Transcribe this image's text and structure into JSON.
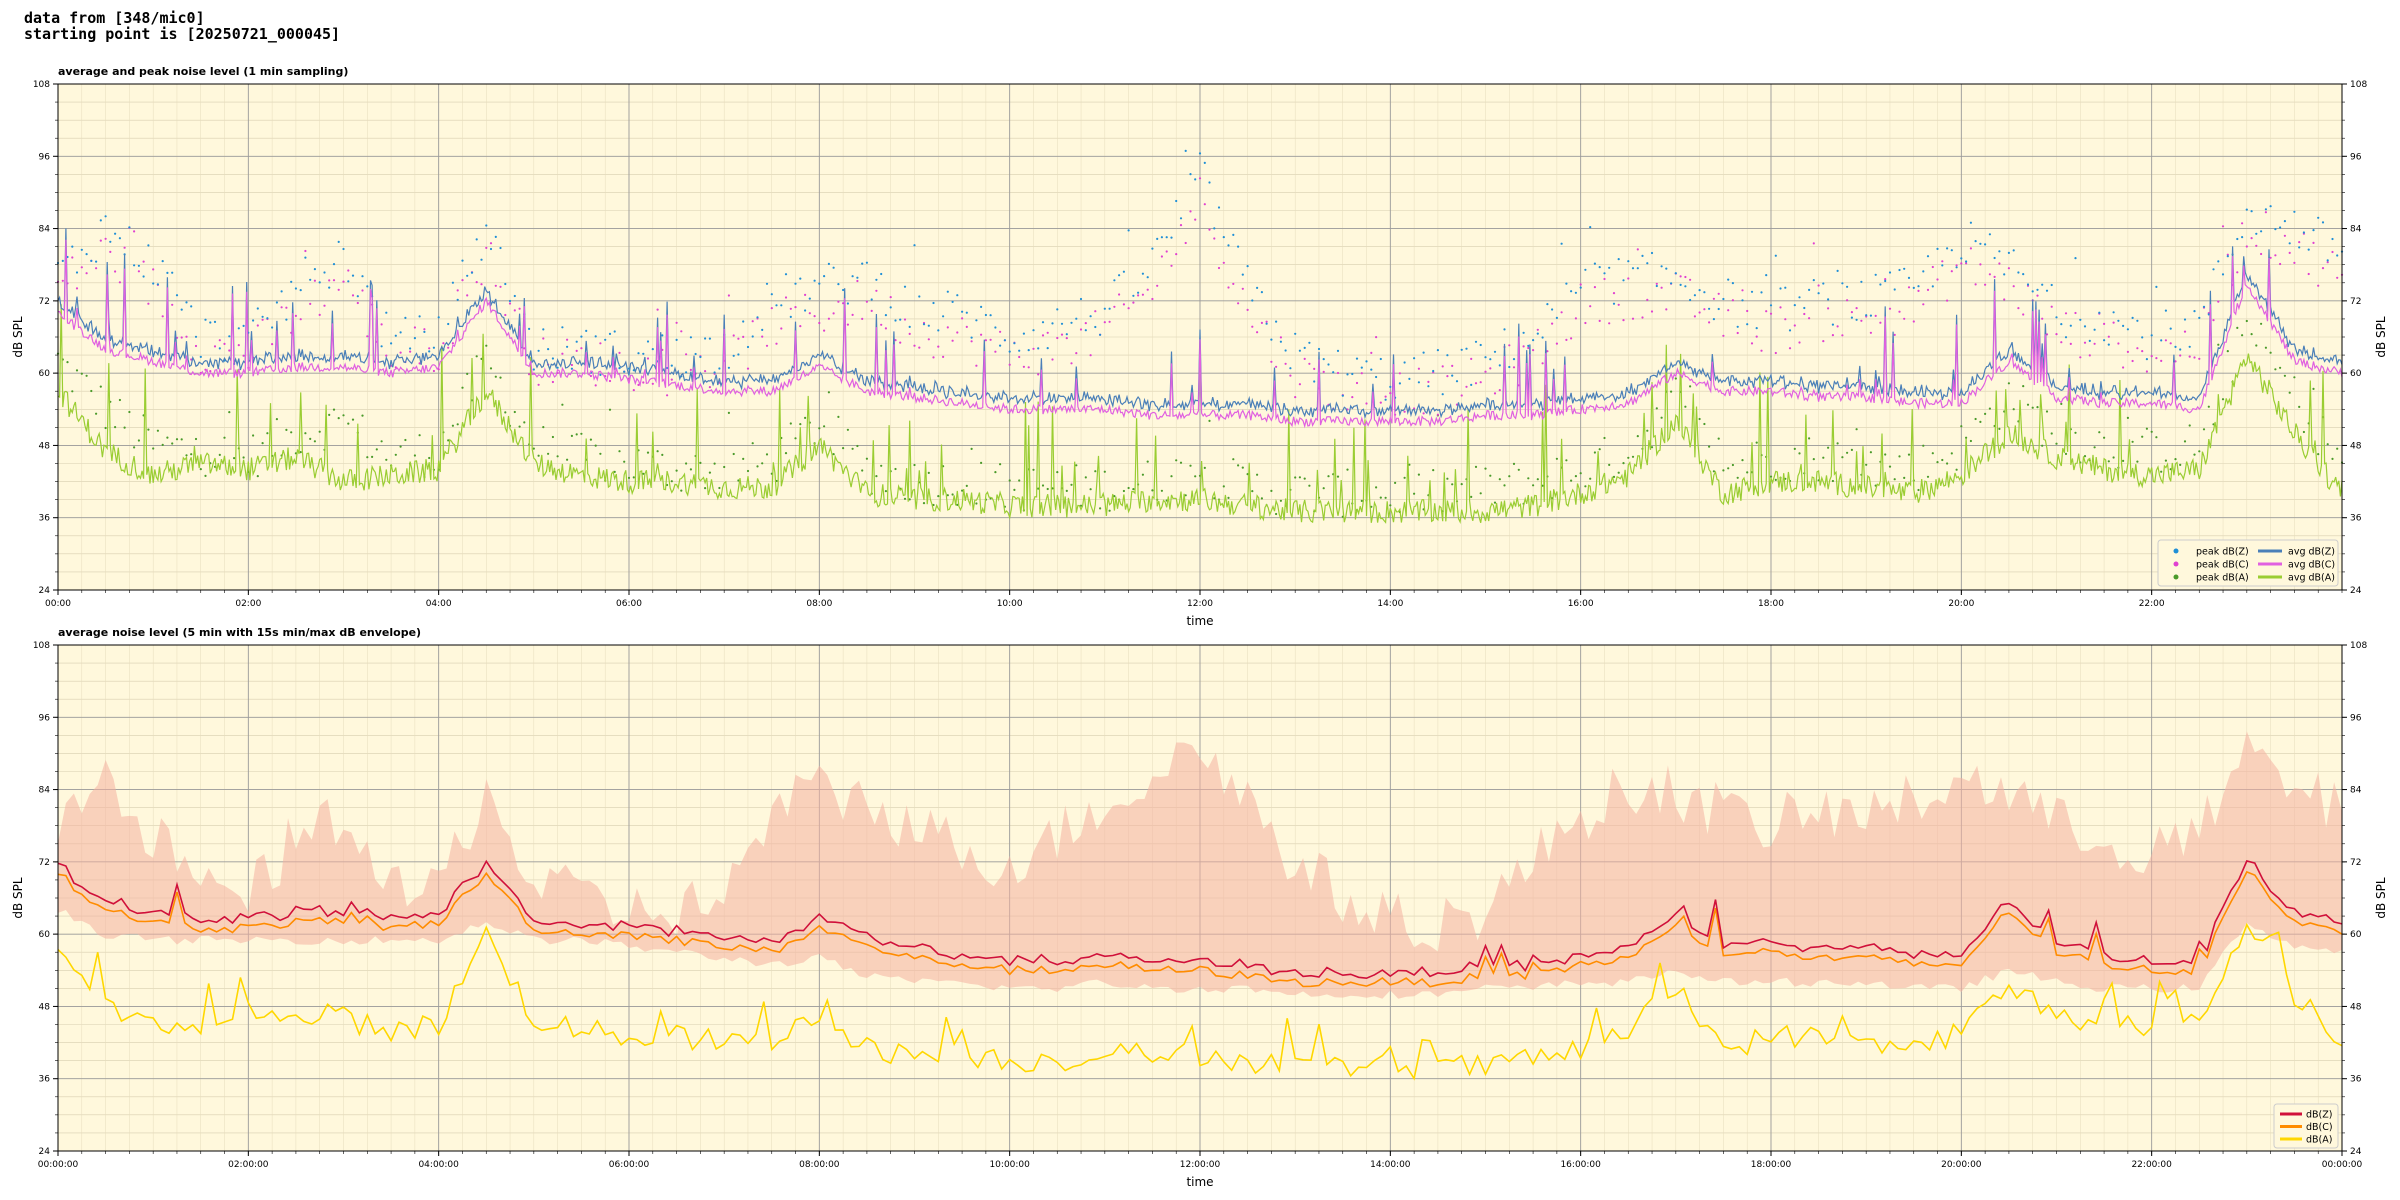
{
  "header": {
    "line1": "data from [348/mic0]",
    "line2": "starting point is [20250721_000045]"
  },
  "colors": {
    "plot_bg": "#fff8dc",
    "peak_z": "#1f8fd6",
    "peak_c": "#e040d0",
    "peak_a": "#4a9a2a",
    "avg_z": "#4a7fb8",
    "avg_c": "#e060e0",
    "avg_a": "#9acd32",
    "env_fill": "#f4b0a0",
    "dbz5": "#d0103a",
    "dbc5": "#ff8c00",
    "dba5": "#ffd700"
  },
  "chart_data": [
    {
      "type": "line",
      "title": "average and peak noise level (1 min sampling)",
      "xlabel": "time",
      "ylabel": "dB SPL",
      "ylim": [
        24,
        108
      ],
      "yticks": [
        "24",
        "36",
        "48",
        "60",
        "72",
        "84",
        "96",
        "108"
      ],
      "xlim_hours": [
        0,
        24
      ],
      "xtick_labels": [
        "00:00",
        "02:00",
        "04:00",
        "06:00",
        "08:00",
        "10:00",
        "12:00",
        "14:00",
        "16:00",
        "18:00",
        "20:00",
        "22:00"
      ],
      "grid": true,
      "legend_position": "lower-right",
      "legend": [
        "peak dB(Z)",
        "peak dB(C)",
        "peak dB(A)",
        "avg dB(Z)",
        "avg dB(C)",
        "avg dB(A)"
      ],
      "x_hours": [
        0,
        0.5,
        1,
        1.5,
        2,
        2.5,
        3,
        3.5,
        4,
        4.5,
        5,
        5.5,
        6,
        6.5,
        7,
        7.5,
        8,
        8.5,
        9,
        9.5,
        10,
        10.5,
        11,
        11.5,
        12,
        12.5,
        13,
        13.5,
        14,
        14.5,
        15,
        15.5,
        16,
        16.5,
        17,
        17.5,
        18,
        18.5,
        19,
        19.5,
        20,
        20.5,
        21,
        21.5,
        22,
        22.5,
        23,
        23.5,
        24
      ],
      "series": [
        {
          "name": "avg dB(Z)",
          "values": [
            72,
            67,
            64,
            62,
            62,
            63,
            63,
            62,
            63,
            74,
            62,
            61,
            61,
            60,
            59,
            59,
            62,
            60,
            59,
            58,
            57,
            57,
            57,
            56,
            56,
            56,
            55,
            55,
            55,
            55,
            56,
            56,
            57,
            58,
            62,
            60,
            60,
            59,
            59,
            58,
            58,
            64,
            59,
            58,
            58,
            57,
            76,
            64,
            62
          ]
        },
        {
          "name": "avg dB(C)",
          "values": [
            70,
            64,
            62,
            60,
            60,
            61,
            61,
            60,
            61,
            72,
            60,
            60,
            59,
            58,
            57,
            57,
            61,
            57,
            56,
            55,
            54,
            54,
            54,
            53,
            53,
            53,
            52,
            52,
            52,
            52,
            53,
            53,
            54,
            55,
            60,
            57,
            57,
            56,
            56,
            55,
            55,
            62,
            56,
            55,
            55,
            54,
            75,
            62,
            60
          ]
        },
        {
          "name": "avg dB(A)",
          "values": [
            57,
            47,
            43,
            45,
            44,
            46,
            42,
            43,
            44,
            57,
            45,
            43,
            42,
            42,
            41,
            41,
            48,
            40,
            39,
            39,
            38,
            38,
            38,
            39,
            39,
            38,
            37,
            37,
            37,
            37,
            37,
            38,
            40,
            43,
            52,
            40,
            42,
            42,
            41,
            40,
            43,
            50,
            46,
            44,
            43,
            44,
            63,
            50,
            40
          ]
        },
        {
          "name": "peak dB(Z)",
          "values": [
            76,
            84,
            78,
            66,
            65,
            74,
            80,
            65,
            66,
            84,
            64,
            64,
            63,
            63,
            64,
            72,
            74,
            76,
            70,
            70,
            66,
            68,
            70,
            78,
            93,
            74,
            63,
            60,
            59,
            60,
            62,
            66,
            74,
            76,
            76,
            72,
            70,
            72,
            72,
            74,
            82,
            78,
            70,
            69,
            66,
            68,
            87,
            84,
            80
          ]
        },
        {
          "name": "peak dB(C)",
          "values": [
            74,
            80,
            74,
            64,
            63,
            70,
            76,
            63,
            64,
            80,
            62,
            62,
            61,
            60,
            61,
            68,
            70,
            72,
            67,
            66,
            63,
            64,
            67,
            74,
            89,
            70,
            60,
            57,
            57,
            57,
            59,
            63,
            71,
            73,
            73,
            69,
            67,
            69,
            69,
            71,
            78,
            75,
            67,
            66,
            63,
            65,
            84,
            81,
            76
          ]
        },
        {
          "name": "peak dB(A)",
          "values": [
            62,
            54,
            48,
            47,
            46,
            50,
            52,
            46,
            47,
            62,
            48,
            46,
            45,
            44,
            44,
            45,
            52,
            44,
            42,
            42,
            41,
            41,
            41,
            42,
            44,
            41,
            40,
            40,
            40,
            40,
            41,
            42,
            44,
            47,
            56,
            44,
            46,
            46,
            45,
            44,
            48,
            56,
            50,
            48,
            47,
            48,
            68,
            56,
            45
          ]
        }
      ]
    },
    {
      "type": "line",
      "title": "average noise level (5 min with 15s min/max dB envelope)",
      "xlabel": "time",
      "ylabel": "dB SPL",
      "ylim": [
        24,
        108
      ],
      "yticks": [
        "24",
        "36",
        "48",
        "60",
        "72",
        "84",
        "96",
        "108"
      ],
      "xlim_hours": [
        0,
        24
      ],
      "xtick_labels": [
        "00:00:00",
        "02:00:00",
        "04:00:00",
        "06:00:00",
        "08:00:00",
        "10:00:00",
        "12:00:00",
        "14:00:00",
        "16:00:00",
        "18:00:00",
        "20:00:00",
        "22:00:00",
        "00:00:00"
      ],
      "grid": true,
      "legend_position": "lower-right",
      "legend": [
        "dB(Z)",
        "dB(C)",
        "dB(A)"
      ],
      "x_hours": [
        0,
        0.5,
        1,
        1.5,
        2,
        2.5,
        3,
        3.5,
        4,
        4.5,
        5,
        5.5,
        6,
        6.5,
        7,
        7.5,
        8,
        8.5,
        9,
        9.5,
        10,
        10.5,
        11,
        11.5,
        12,
        12.5,
        13,
        13.5,
        14,
        14.5,
        15,
        15.5,
        16,
        16.5,
        17,
        17.5,
        18,
        18.5,
        19,
        19.5,
        20,
        20.5,
        21,
        21.5,
        22,
        22.5,
        23,
        23.5,
        24
      ],
      "series": [
        {
          "name": "dB(Z)",
          "values": [
            72,
            66,
            64,
            62,
            62,
            63,
            64,
            62,
            63,
            72,
            62,
            61,
            61,
            60,
            59,
            59,
            63,
            60,
            59,
            58,
            57,
            57,
            58,
            57,
            56,
            56,
            55,
            55,
            55,
            55,
            56,
            56,
            58,
            59,
            63,
            60,
            60,
            59,
            59,
            58,
            58,
            66,
            60,
            58,
            57,
            57,
            73,
            64,
            62
          ]
        },
        {
          "name": "dB(C)",
          "values": [
            70,
            64,
            62,
            61,
            61,
            62,
            62,
            61,
            62,
            70,
            61,
            60,
            60,
            59,
            58,
            57,
            61,
            58,
            56,
            55,
            54,
            54,
            55,
            54,
            54,
            53,
            52,
            52,
            52,
            52,
            53,
            53,
            55,
            56,
            61,
            57,
            57,
            56,
            56,
            55,
            55,
            64,
            57,
            55,
            54,
            54,
            71,
            62,
            60
          ]
        },
        {
          "name": "dB(A)",
          "values": [
            59,
            48,
            44,
            45,
            45,
            47,
            46,
            44,
            45,
            60,
            46,
            44,
            43,
            43,
            42,
            42,
            47,
            41,
            40,
            40,
            39,
            39,
            40,
            40,
            40,
            39,
            38,
            38,
            38,
            38,
            38,
            39,
            41,
            44,
            51,
            41,
            43,
            43,
            42,
            41,
            44,
            51,
            47,
            45,
            44,
            45,
            62,
            50,
            42
          ]
        },
        {
          "name": "envelope max",
          "values": [
            80,
            84,
            76,
            68,
            66,
            76,
            80,
            66,
            68,
            84,
            68,
            66,
            64,
            64,
            66,
            80,
            84,
            82,
            78,
            74,
            72,
            76,
            82,
            86,
            92,
            82,
            72,
            66,
            62,
            62,
            64,
            72,
            80,
            84,
            84,
            80,
            78,
            80,
            80,
            82,
            86,
            84,
            78,
            76,
            74,
            76,
            90,
            84,
            80
          ]
        },
        {
          "name": "envelope min",
          "values": [
            64,
            60,
            59,
            59,
            59,
            59,
            59,
            59,
            59,
            62,
            59,
            59,
            58,
            57,
            56,
            55,
            56,
            53,
            52,
            52,
            51,
            51,
            52,
            51,
            51,
            51,
            50,
            50,
            50,
            50,
            51,
            51,
            52,
            52,
            54,
            52,
            52,
            52,
            52,
            51,
            51,
            54,
            52,
            51,
            51,
            51,
            62,
            58,
            57
          ]
        }
      ]
    }
  ]
}
